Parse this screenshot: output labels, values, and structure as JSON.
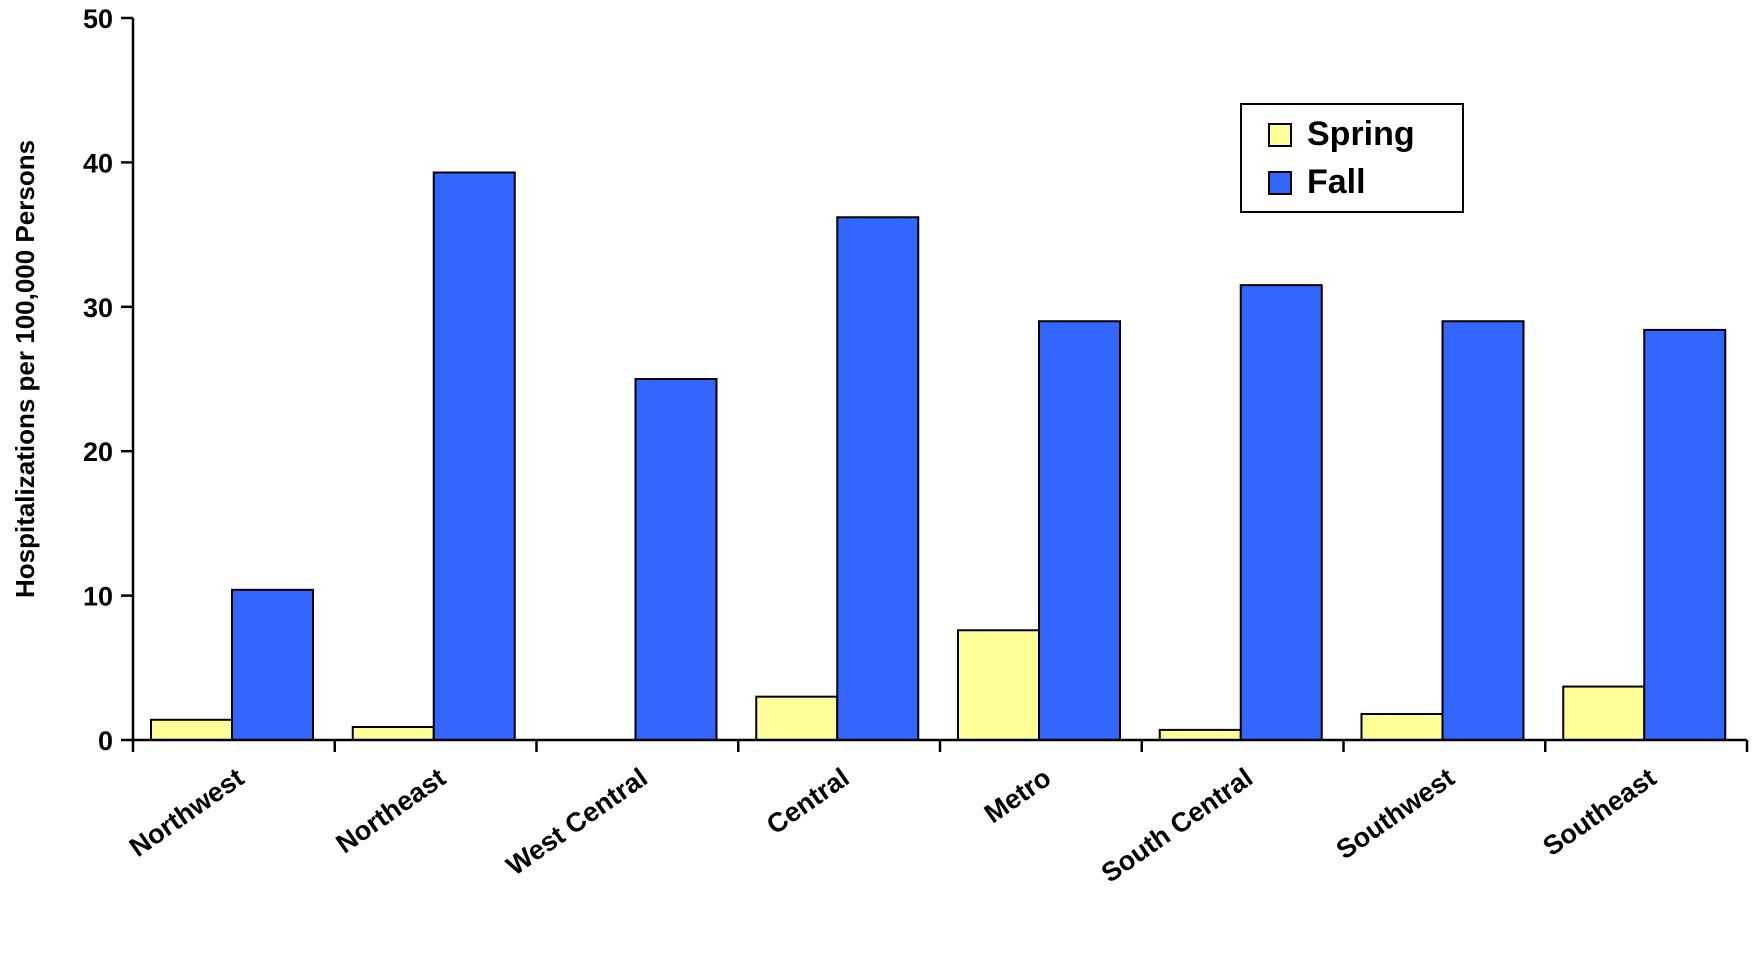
{
  "chart_data": {
    "type": "bar",
    "title": "",
    "xlabel": "",
    "ylabel": "Hospitalizations per 100,000 Persons",
    "ylim": [
      0,
      50
    ],
    "yticks": [
      0,
      10,
      20,
      30,
      40,
      50
    ],
    "grid": false,
    "legend_position": "top-right",
    "categories": [
      "Northwest",
      "Northeast",
      "West Central",
      "Central",
      "Metro",
      "South Central",
      "Southwest",
      "Southeast"
    ],
    "series": [
      {
        "name": "Spring",
        "color": "#ffff99",
        "values": [
          1.4,
          0.9,
          0,
          3.0,
          7.6,
          0.7,
          1.8,
          3.7
        ]
      },
      {
        "name": "Fall",
        "color": "#3366ff",
        "values": [
          10.4,
          39.3,
          25.0,
          36.2,
          29.0,
          31.5,
          29.0,
          28.4
        ]
      }
    ]
  }
}
